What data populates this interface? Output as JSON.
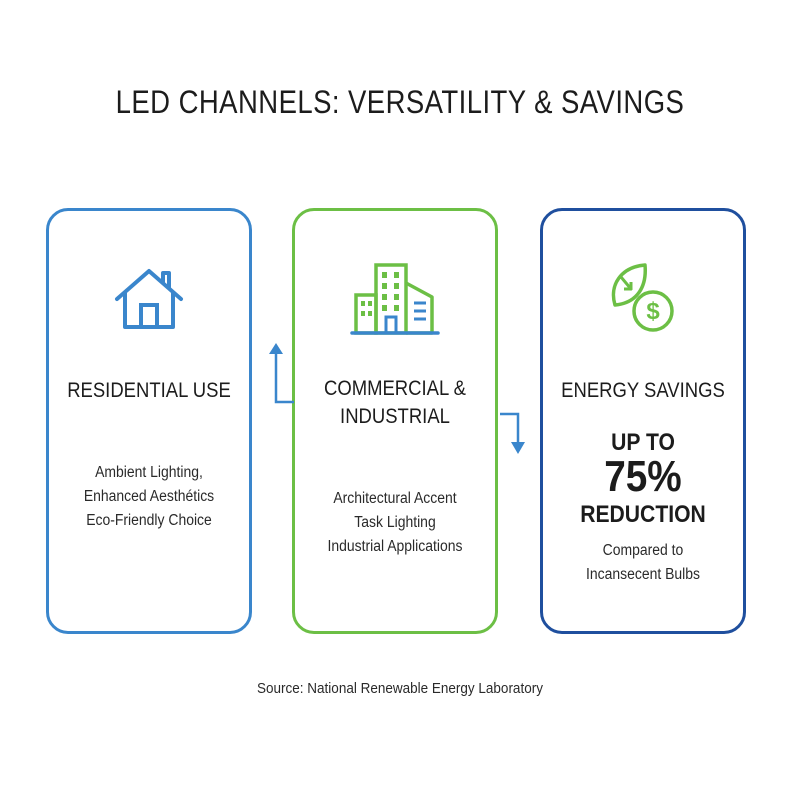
{
  "title": "LED CHANNELS: VERSATILITY & SAVINGS",
  "cards": [
    {
      "heading": "RESIDENTIAL USE",
      "icon": "house-icon",
      "color": "#3a86cc",
      "lines": [
        "Ambient Lighting,",
        "Enhanced Aesthétics",
        "Eco-Friendly Choice"
      ]
    },
    {
      "heading_line1": "COMMERCIAL &",
      "heading_line2": "INDUSTRIAL",
      "icon": "buildings-icon",
      "color": "#6cbf45",
      "lines": [
        "Architectural Accent",
        "Task Lighting",
        "Industrial Applications"
      ]
    },
    {
      "heading": "ENERGY SAVINGS",
      "icon": "leaf-dollar-icon",
      "color": "#1f4f9e",
      "stat_prefix": "UP TO",
      "stat_value": "75%",
      "stat_suffix": "REDUCTION",
      "lines": [
        "Compared to",
        "Incansecent Bulbs"
      ]
    }
  ],
  "source": "Source: National Renewable Energy Laboratory"
}
